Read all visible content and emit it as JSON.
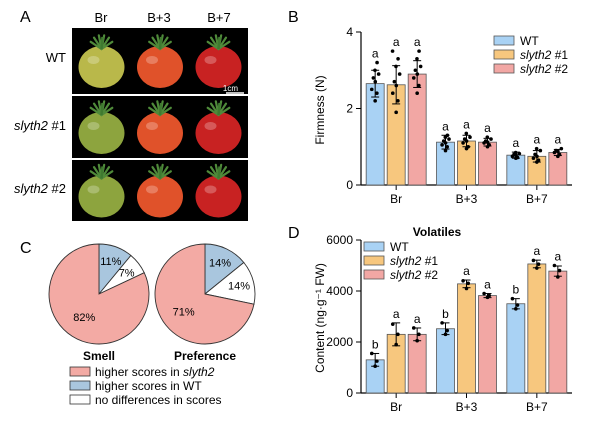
{
  "colors": {
    "wt": "#a9d2f4",
    "slyth2_1": "#f7c77e",
    "slyth2_2": "#f2a7a4",
    "pie_slyth2": "#f3aaa4",
    "pie_wt": "#a9c6de",
    "pie_none": "#ffffff",
    "tomato_green": "#9aa83a",
    "tomato_red_orange": "#e0522a",
    "tomato_red": "#c82222",
    "photo_bg": "#000000"
  },
  "panel_a": {
    "label": "A",
    "columns": [
      "Br",
      "B+3",
      "B+7"
    ],
    "rows": [
      {
        "label_plain": "WT",
        "label_italic": "",
        "label_suffix": "",
        "stages": [
          "yellow",
          "orange",
          "red"
        ]
      },
      {
        "label_plain": "",
        "label_italic": "slyth2",
        "label_suffix": " #1",
        "stages": [
          "green",
          "orange",
          "red"
        ]
      },
      {
        "label_plain": "",
        "label_italic": "slyth2",
        "label_suffix": " #2",
        "stages": [
          "green",
          "orange",
          "red"
        ]
      }
    ],
    "scale_bar": "1cm"
  },
  "panel_b": {
    "label": "B"
  },
  "panel_c": {
    "label": "C",
    "pies": [
      {
        "title": "Smell",
        "slices": [
          {
            "key": "slyth2",
            "value": 82,
            "text": "82%"
          },
          {
            "key": "wt",
            "value": 11,
            "text": "11%"
          },
          {
            "key": "none",
            "value": 7,
            "text": "7%"
          }
        ]
      },
      {
        "title": "Preference",
        "slices": [
          {
            "key": "slyth2",
            "value": 71,
            "text": "71%"
          },
          {
            "key": "wt",
            "value": 14,
            "text": "14%"
          },
          {
            "key": "none",
            "value": 14,
            "text": "14%"
          }
        ]
      }
    ],
    "legend": [
      {
        "key": "slyth2",
        "text": "higher scores in ",
        "italic": "slyth2"
      },
      {
        "key": "wt",
        "text": "higher scores in WT",
        "italic": ""
      },
      {
        "key": "none",
        "text": "no differences in scores",
        "italic": ""
      }
    ]
  },
  "panel_d": {
    "label": "D"
  },
  "chart_data": [
    {
      "type": "bar",
      "title": "",
      "ylabel": "Firmness (N)",
      "xlabel": "",
      "categories": [
        "Br",
        "B+3",
        "B+7"
      ],
      "ylim": [
        0,
        4
      ],
      "yticks": [
        0,
        2,
        4
      ],
      "legend_position": "top-right",
      "series": [
        {
          "name_plain": "WT",
          "name_italic": "",
          "name_suffix": "",
          "values": [
            2.65,
            1.12,
            0.78
          ],
          "errors": [
            0.35,
            0.18,
            0.08
          ],
          "points": [
            [
              2.2,
              2.4,
              2.5,
              2.7,
              2.8,
              2.9,
              3.0,
              3.2
            ],
            [
              0.9,
              1.0,
              1.05,
              1.1,
              1.15,
              1.2,
              1.25,
              1.3
            ],
            [
              0.7,
              0.72,
              0.75,
              0.78,
              0.8,
              0.82,
              0.85
            ]
          ]
        },
        {
          "name_plain": "",
          "name_italic": "slyth2",
          "name_suffix": " #1",
          "values": [
            2.62,
            1.15,
            0.75
          ],
          "errors": [
            0.5,
            0.15,
            0.15
          ],
          "points": [
            [
              1.9,
              2.2,
              2.4,
              2.6,
              2.7,
              2.9,
              3.1,
              3.3,
              3.5
            ],
            [
              0.95,
              1.0,
              1.1,
              1.15,
              1.2,
              1.25,
              1.35
            ],
            [
              0.6,
              0.65,
              0.7,
              0.75,
              0.8,
              0.9,
              0.95
            ]
          ]
        },
        {
          "name_plain": "",
          "name_italic": "slyth2",
          "name_suffix": " #2",
          "values": [
            2.9,
            1.12,
            0.85
          ],
          "errors": [
            0.35,
            0.1,
            0.08
          ],
          "points": [
            [
              2.4,
              2.6,
              2.8,
              2.9,
              3.0,
              3.1,
              3.3,
              3.5
            ],
            [
              1.0,
              1.05,
              1.1,
              1.12,
              1.15,
              1.2,
              1.25
            ],
            [
              0.75,
              0.8,
              0.85,
              0.88,
              0.9,
              0.95
            ]
          ]
        }
      ],
      "significance": [
        [
          "a",
          "a",
          "a"
        ],
        [
          "a",
          "a",
          "a"
        ],
        [
          "a",
          "a",
          "a"
        ]
      ]
    },
    {
      "type": "bar",
      "title": "Volatiles",
      "ylabel": "Content (ng·g⁻¹ FW)",
      "xlabel": "",
      "categories": [
        "Br",
        "B+3",
        "B+7"
      ],
      "ylim": [
        0,
        6000
      ],
      "yticks": [
        0,
        2000,
        4000,
        6000
      ],
      "legend_position": "top-left",
      "series": [
        {
          "name_plain": "WT",
          "name_italic": "",
          "name_suffix": "",
          "values": [
            1300,
            2520,
            3500
          ],
          "errors": [
            250,
            230,
            200
          ],
          "points": [
            [
              1050,
              1250,
              1550
            ],
            [
              2300,
              2450,
              2750
            ],
            [
              3300,
              3450,
              3700
            ]
          ]
        },
        {
          "name_plain": "",
          "name_italic": "slyth2",
          "name_suffix": " #1",
          "values": [
            2300,
            4280,
            5060
          ],
          "errors": [
            450,
            150,
            150
          ],
          "points": [
            [
              1900,
              2300,
              2700
            ],
            [
              4100,
              4300,
              4400
            ],
            [
              4900,
              5050,
              5200
            ]
          ]
        },
        {
          "name_plain": "",
          "name_italic": "slyth2",
          "name_suffix": " #2",
          "values": [
            2300,
            3820,
            4780
          ],
          "errors": [
            250,
            80,
            200
          ],
          "points": [
            [
              2050,
              2300,
              2550
            ],
            [
              3750,
              3820,
              3900
            ],
            [
              4550,
              4800,
              5000
            ]
          ]
        }
      ],
      "significance": [
        [
          "b",
          "a",
          "a"
        ],
        [
          "b",
          "a",
          "a"
        ],
        [
          "b",
          "a",
          "a"
        ]
      ]
    }
  ]
}
